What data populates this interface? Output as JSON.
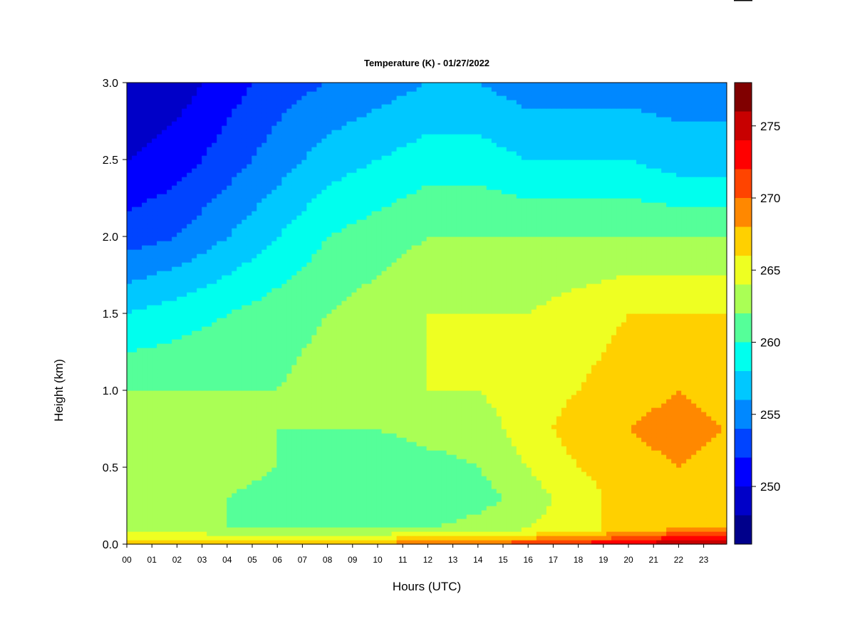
{
  "chart_data": {
    "type": "heatmap",
    "title": "Temperature (K) - 01/27/2022",
    "xlabel": "Hours (UTC)",
    "ylabel": "Height (km)",
    "xlim": [
      0,
      23.9
    ],
    "ylim": [
      0,
      3.0
    ],
    "x_ticks": [
      "00",
      "01",
      "02",
      "03",
      "04",
      "05",
      "06",
      "07",
      "08",
      "09",
      "10",
      "11",
      "12",
      "13",
      "14",
      "15",
      "16",
      "17",
      "18",
      "19",
      "20",
      "21",
      "22",
      "23"
    ],
    "y_ticks": [
      "0.0",
      "0.5",
      "1.0",
      "1.5",
      "2.0",
      "2.5",
      "3.0"
    ],
    "colorbar": {
      "min": 246,
      "max": 278,
      "step": 2,
      "tick_values": [
        250,
        255,
        260,
        265,
        270,
        275
      ],
      "tick_labels": [
        "250",
        "255",
        "260",
        "265",
        "270",
        "275"
      ],
      "colors": [
        "#00008b",
        "#0000c8",
        "#0000ff",
        "#0044ff",
        "#0088ff",
        "#00c8ff",
        "#00ffee",
        "#55ff99",
        "#aaff55",
        "#eeff22",
        "#ffd000",
        "#ff8800",
        "#ff4400",
        "#ff0000",
        "#c80000",
        "#800000"
      ]
    },
    "hours": [
      0,
      2,
      4,
      6,
      8,
      10,
      12,
      14,
      16,
      18,
      20,
      22,
      23.9
    ],
    "heights_km": [
      0,
      0.05,
      0.1,
      0.3,
      0.5,
      0.75,
      1.0,
      1.5,
      2.0,
      2.5,
      3.0
    ],
    "temperature_K": [
      [
        269,
        269,
        269,
        269,
        269,
        269,
        269,
        270,
        272,
        273,
        274,
        276,
        276
      ],
      [
        265,
        265,
        265,
        265,
        265,
        265,
        266,
        266,
        267,
        268,
        270,
        272,
        272
      ],
      [
        263,
        263,
        262,
        262,
        262,
        262,
        262,
        263,
        264,
        265,
        267,
        268,
        268
      ],
      [
        263,
        263,
        262,
        261,
        261,
        260,
        260,
        261,
        263,
        265,
        267,
        267,
        267
      ],
      [
        263,
        263,
        263,
        262,
        261,
        260,
        261,
        262,
        264,
        266,
        267,
        268,
        267
      ],
      [
        263,
        263,
        263,
        262,
        262,
        262,
        263,
        263,
        265,
        267,
        268,
        269,
        268
      ],
      [
        262,
        262,
        262,
        262,
        263,
        264,
        264,
        264,
        265,
        266,
        267,
        268,
        267
      ],
      [
        258,
        259,
        260,
        261,
        262,
        263,
        264,
        264,
        264,
        265,
        266,
        266,
        266
      ],
      [
        253,
        254,
        256,
        258,
        260,
        261,
        262,
        262,
        262,
        262,
        262,
        262,
        262
      ],
      [
        250,
        251,
        253,
        255,
        257,
        258,
        259,
        259,
        258,
        258,
        258,
        257,
        257
      ],
      [
        248,
        249,
        251,
        253,
        254,
        255,
        256,
        256,
        255,
        255,
        255,
        255,
        255
      ]
    ]
  }
}
